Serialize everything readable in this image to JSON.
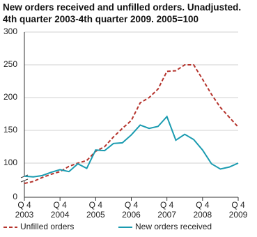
{
  "chart_data": {
    "type": "line",
    "title": "New orders received and unfilled orders. Unadjusted. 4th quarter 2003-4th quarter 2009. 2005=100",
    "categories": [
      "Q 4 2003",
      null,
      null,
      null,
      "Q 4 2004",
      null,
      null,
      null,
      "Q 4 2005",
      null,
      null,
      null,
      "Q 4 2006",
      null,
      null,
      null,
      "Q 4 2007",
      null,
      null,
      null,
      "Q 4 2008",
      null,
      null,
      null,
      "Q 4 2009"
    ],
    "series": [
      {
        "name": "Unfilled orders",
        "color": "#b5332c",
        "dashed": true,
        "values": [
          69,
          72,
          78,
          83,
          87,
          95,
          100,
          104,
          118,
          125,
          140,
          153,
          165,
          192,
          200,
          213,
          240,
          241,
          250,
          250,
          228,
          205,
          185,
          170,
          155
        ]
      },
      {
        "name": "New orders received",
        "color": "#1a9bb0",
        "dashed": false,
        "values": [
          80,
          79,
          81,
          86,
          90,
          87,
          99,
          92,
          120,
          119,
          130,
          131,
          143,
          158,
          153,
          156,
          171,
          135,
          144,
          136,
          120,
          99,
          91,
          94,
          100
        ]
      }
    ],
    "ylim": [
      0,
      300
    ],
    "yticks": [
      0,
      100,
      150,
      200,
      250,
      300
    ],
    "grid": true,
    "axis_break": true,
    "legend": "bottom"
  }
}
